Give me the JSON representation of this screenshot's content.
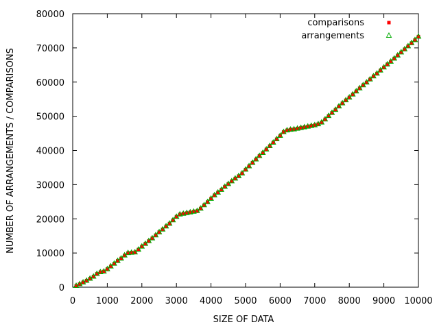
{
  "chart_data": {
    "type": "scatter",
    "title": "",
    "xlabel": "SIZE OF DATA",
    "ylabel": "NUMBER OF ARRANGEMENTS / COMPARISONS",
    "xlim": [
      0,
      10000
    ],
    "ylim": [
      0,
      80000
    ],
    "xticks": [
      "0",
      "1000",
      "2000",
      "3000",
      "4000",
      "5000",
      "6000",
      "7000",
      "8000",
      "9000",
      "10000"
    ],
    "yticks": [
      "0",
      "10000",
      "20000",
      "30000",
      "40000",
      "50000",
      "60000",
      "70000",
      "80000"
    ],
    "grid": false,
    "legend_position": "top-right",
    "x": [
      100,
      200,
      300,
      400,
      500,
      600,
      700,
      800,
      900,
      1000,
      1100,
      1200,
      1300,
      1400,
      1500,
      1600,
      1700,
      1800,
      1900,
      2000,
      2100,
      2200,
      2300,
      2400,
      2500,
      2600,
      2700,
      2800,
      2900,
      3000,
      3100,
      3200,
      3300,
      3400,
      3500,
      3600,
      3700,
      3800,
      3900,
      4000,
      4100,
      4200,
      4300,
      4400,
      4500,
      4600,
      4700,
      4800,
      4900,
      5000,
      5100,
      5200,
      5300,
      5400,
      5500,
      5600,
      5700,
      5800,
      5900,
      6000,
      6100,
      6200,
      6300,
      6400,
      6500,
      6600,
      6700,
      6800,
      6900,
      7000,
      7100,
      7200,
      7300,
      7400,
      7500,
      7600,
      7700,
      7800,
      7900,
      8000,
      8100,
      8200,
      8300,
      8400,
      8500,
      8600,
      8700,
      8800,
      8900,
      9000,
      9100,
      9200,
      9300,
      9400,
      9500,
      9600,
      9700,
      9800,
      9900,
      10000
    ],
    "series": [
      {
        "name": "comparisons",
        "marker": "filled-square",
        "color": "#ff0000",
        "values": [
          400,
          900,
          1400,
          1900,
          2500,
          3100,
          3900,
          4400,
          4600,
          5300,
          6100,
          6900,
          7700,
          8400,
          9300,
          10000,
          10100,
          10200,
          11000,
          11900,
          12700,
          13500,
          14300,
          15200,
          16100,
          16900,
          17800,
          18600,
          19600,
          20600,
          21300,
          21500,
          21700,
          21900,
          22100,
          22300,
          23000,
          24000,
          24900,
          25900,
          26900,
          27700,
          28500,
          29400,
          30200,
          31000,
          31800,
          32500,
          33300,
          34400,
          35400,
          36400,
          37400,
          38400,
          39300,
          40300,
          41300,
          42300,
          43300,
          44300,
          45400,
          45900,
          46100,
          46200,
          46400,
          46600,
          46800,
          47000,
          47200,
          47400,
          47700,
          48200,
          49100,
          50100,
          51000,
          51900,
          52900,
          53800,
          54700,
          55500,
          56400,
          57300,
          58200,
          59100,
          59900,
          60800,
          61700,
          62500,
          63400,
          64300,
          65200,
          66000,
          66900,
          67800,
          68700,
          69600,
          70500,
          71400,
          72300,
          73300
        ]
      },
      {
        "name": "arrangements",
        "marker": "open-triangle",
        "color": "#00aa00",
        "values": [
          400,
          900,
          1400,
          1900,
          2500,
          3100,
          3900,
          4400,
          4600,
          5300,
          6100,
          6900,
          7700,
          8400,
          9300,
          10000,
          10100,
          10200,
          11000,
          11900,
          12700,
          13500,
          14300,
          15200,
          16100,
          16900,
          17800,
          18600,
          19600,
          20600,
          21300,
          21500,
          21700,
          21900,
          22100,
          22300,
          23000,
          24000,
          24900,
          25900,
          26900,
          27700,
          28500,
          29400,
          30200,
          31000,
          31800,
          32500,
          33300,
          34400,
          35400,
          36400,
          37400,
          38400,
          39300,
          40300,
          41300,
          42300,
          43300,
          44300,
          45400,
          45900,
          46100,
          46200,
          46400,
          46600,
          46800,
          47000,
          47200,
          47400,
          47700,
          48200,
          49100,
          50100,
          51000,
          51900,
          52900,
          53800,
          54700,
          55500,
          56400,
          57300,
          58200,
          59100,
          59900,
          60800,
          61700,
          62500,
          63400,
          64300,
          65200,
          66000,
          66900,
          67800,
          68700,
          69600,
          70500,
          71400,
          72300,
          73300
        ]
      }
    ]
  }
}
